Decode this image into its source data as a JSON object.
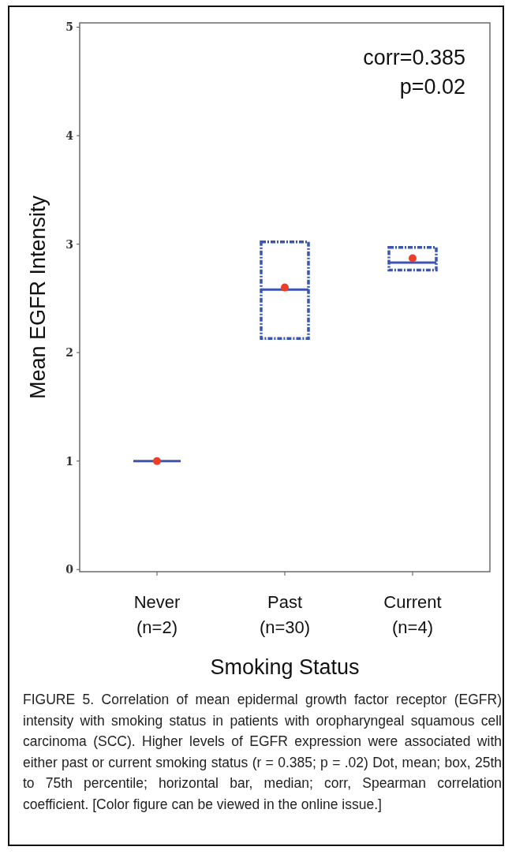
{
  "chart_data": {
    "type": "box",
    "xlabel": "Smoking Status",
    "ylabel": "Mean EGFR Intensity",
    "categories": [
      "Never\n(n=2)",
      "Past\n(n=30)",
      "Current\n(n=4)"
    ],
    "ylim": [
      -0.02,
      5.04
    ],
    "yticks": [
      0,
      1,
      2,
      3,
      4,
      5
    ],
    "grid": false,
    "series": [
      {
        "color": "#3b55b3",
        "line_style": "dashed",
        "boxes": [
          {
            "low": 1,
            "q1": 1,
            "median": 1,
            "q3": 1,
            "high": 1
          },
          {
            "low": 2.13,
            "q1": 2.13,
            "median": 2.58,
            "q3": 3.02,
            "high": 3.02
          },
          {
            "low": 2.76,
            "q1": 2.76,
            "median": 2.83,
            "q3": 2.97,
            "high": 2.97
          }
        ]
      },
      {
        "type": "scatter",
        "color": "#e8402a",
        "marker": "circle",
        "x": [
          "Never\n(n=2)",
          "Past\n(n=30)",
          "Current\n(n=4)"
        ],
        "values": [
          1,
          2.6,
          2.87
        ]
      }
    ],
    "annotations": [
      "corr=0.385",
      "p=0.02",
      "FIGURE 5. Correlation of mean epidermal growth factor receptor (EGFR) intensity with smoking status in patients with oropharyngeal squamous cell carcinoma (SCC). Higher levels of EGFR expression were associated with either past or current smoking status (r = 0.385; p = .02) Dot, mean; box, 25th to 75th percentile; horizontal bar, median; corr, Spearman correlation coefficient. [Color figure can be viewed in the online issue.]"
    ]
  }
}
